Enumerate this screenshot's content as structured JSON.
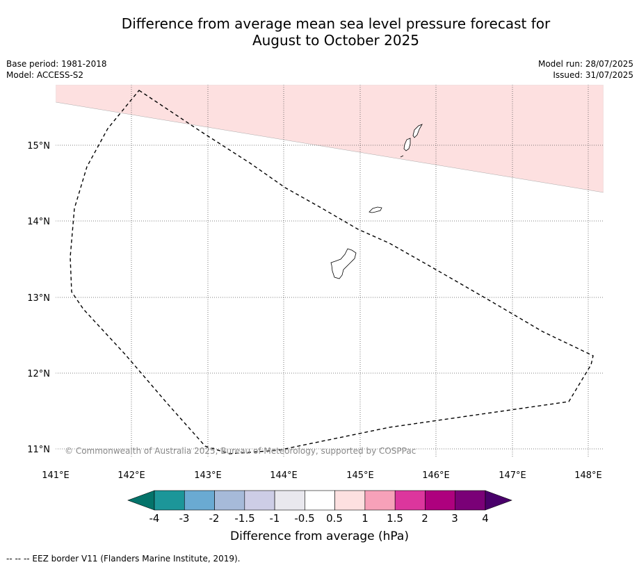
{
  "title_line1": "Difference from average mean sea level pressure forecast for",
  "title_line2": "August to October 2025",
  "base_period": "Base period: 1981-2018",
  "model": "Model: ACCESS-S2",
  "model_run": "Model run: 28/07/2025",
  "issued": "Issued: 31/07/2025",
  "copyright": "© Commonwealth of Australia 2025, Bureau of Meteorology, supported by COSPPac",
  "lon_labels": [
    "141°E",
    "142°E",
    "143°E",
    "144°E",
    "145°E",
    "146°E",
    "147°E",
    "148°E"
  ],
  "lat_labels": [
    "15°N",
    "14°N",
    "13°N",
    "12°N",
    "11°N"
  ],
  "colorbar": {
    "tick_labels": [
      "-4",
      "-3",
      "-2",
      "-1.5",
      "-1",
      "-0.5",
      "0.5",
      "1",
      "1.5",
      "2",
      "3",
      "4"
    ],
    "colors": [
      "#04736a",
      "#1c9699",
      "#6aaad2",
      "#a6bad9",
      "#cdcde6",
      "#e9e8ee",
      "#ffffff",
      "#fde0e0",
      "#f7a1b9",
      "#dc369d",
      "#ae017e",
      "#7a0177",
      "#49006a"
    ],
    "label": "Difference from average (hPa)"
  },
  "footnote": "--  --  -- EEZ border V11 (Flanders Marine Institute, 2019).",
  "colors": {
    "shaded_region": "#fde0e0"
  }
}
